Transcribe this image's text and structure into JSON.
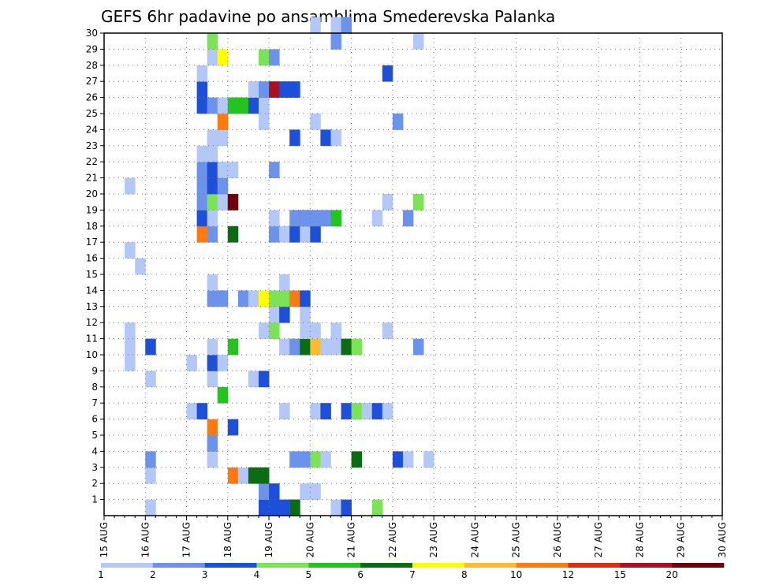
{
  "chart_data": {
    "type": "heatmap",
    "title": "GEFS 6hr padavine po ansamblima Smederevska Palanka",
    "xlabel": "",
    "ylabel": "",
    "x_ticks": [
      "15 AUG",
      "16 AUG",
      "17 AUG",
      "18 AUG",
      "19 AUG",
      "20 AUG",
      "21 AUG",
      "22 AUG",
      "23 AUG",
      "24 AUG",
      "25 AUG",
      "26 AUG",
      "27 AUG",
      "28 AUG",
      "29 AUG",
      "30 AUG"
    ],
    "y_ticks": [
      "1",
      "2",
      "3",
      "4",
      "5",
      "6",
      "7",
      "8",
      "9",
      "10",
      "11",
      "12",
      "13",
      "14",
      "15",
      "16",
      "17",
      "18",
      "19",
      "20",
      "21",
      "22",
      "23",
      "24",
      "25",
      "26",
      "27",
      "28",
      "29",
      "30"
    ],
    "xlim": [
      0,
      60
    ],
    "ylim": [
      0,
      30
    ],
    "grid": true,
    "legend": "colorbar-bottom",
    "levels": [
      "1",
      "2",
      "3",
      "4",
      "5",
      "6",
      "7",
      "8",
      "10",
      "12",
      "15",
      "20"
    ],
    "colors": [
      "#b3c8f7",
      "#6b93ec",
      "#1d4fd8",
      "#7de356",
      "#23c41e",
      "#0a6d11",
      "#ffff00",
      "#ffbb2e",
      "#ff7a0e",
      "#e02b15",
      "#ad0f1c",
      "#6e0009"
    ],
    "cell_units": "x = 6-hour step index from 15 AUG 00z (4 per day); y = ensemble member; c = colour class index (0-11)",
    "cells": [
      {
        "x": 4,
        "y": 0,
        "c": 0
      },
      {
        "x": 15,
        "y": 0,
        "c": 2
      },
      {
        "x": 16,
        "y": 0,
        "c": 2
      },
      {
        "x": 17,
        "y": 0,
        "c": 2
      },
      {
        "x": 18,
        "y": 0,
        "c": 0
      },
      {
        "x": 18,
        "y": 0,
        "c": 5
      },
      {
        "x": 22,
        "y": 0,
        "c": 0
      },
      {
        "x": 23,
        "y": 0,
        "c": 2
      },
      {
        "x": 26,
        "y": 0,
        "c": 3
      },
      {
        "x": 15,
        "y": 1,
        "c": 1
      },
      {
        "x": 16,
        "y": 1,
        "c": 2
      },
      {
        "x": 19,
        "y": 1,
        "c": 0
      },
      {
        "x": 20,
        "y": 1,
        "c": 0
      },
      {
        "x": 4,
        "y": 2,
        "c": 0
      },
      {
        "x": 12,
        "y": 2,
        "c": 8
      },
      {
        "x": 13,
        "y": 2,
        "c": 0
      },
      {
        "x": 14,
        "y": 2,
        "c": 0
      },
      {
        "x": 14,
        "y": 2,
        "c": 5
      },
      {
        "x": 15,
        "y": 2,
        "c": 5
      },
      {
        "x": 4,
        "y": 3,
        "c": 1
      },
      {
        "x": 10,
        "y": 3,
        "c": 0
      },
      {
        "x": 18,
        "y": 3,
        "c": 1
      },
      {
        "x": 19,
        "y": 3,
        "c": 1
      },
      {
        "x": 20,
        "y": 3,
        "c": 3
      },
      {
        "x": 21,
        "y": 3,
        "c": 0
      },
      {
        "x": 24,
        "y": 3,
        "c": 5
      },
      {
        "x": 28,
        "y": 3,
        "c": 2
      },
      {
        "x": 29,
        "y": 3,
        "c": 0
      },
      {
        "x": 31,
        "y": 3,
        "c": 0
      },
      {
        "x": 10,
        "y": 4,
        "c": 1
      },
      {
        "x": 10,
        "y": 5,
        "c": 8
      },
      {
        "x": 12,
        "y": 5,
        "c": 2
      },
      {
        "x": 8,
        "y": 6,
        "c": 0
      },
      {
        "x": 9,
        "y": 6,
        "c": 2
      },
      {
        "x": 17,
        "y": 6,
        "c": 0
      },
      {
        "x": 20,
        "y": 6,
        "c": 0
      },
      {
        "x": 21,
        "y": 6,
        "c": 2
      },
      {
        "x": 23,
        "y": 6,
        "c": 2
      },
      {
        "x": 24,
        "y": 6,
        "c": 3
      },
      {
        "x": 25,
        "y": 6,
        "c": 0
      },
      {
        "x": 26,
        "y": 6,
        "c": 2
      },
      {
        "x": 27,
        "y": 6,
        "c": 0
      },
      {
        "x": 11,
        "y": 7,
        "c": 4
      },
      {
        "x": 4,
        "y": 8,
        "c": 0
      },
      {
        "x": 10,
        "y": 8,
        "c": 0
      },
      {
        "x": 14,
        "y": 8,
        "c": 0
      },
      {
        "x": 15,
        "y": 8,
        "c": 2
      },
      {
        "x": 2,
        "y": 9,
        "c": 0
      },
      {
        "x": 8,
        "y": 9,
        "c": 0
      },
      {
        "x": 10,
        "y": 9,
        "c": 2
      },
      {
        "x": 11,
        "y": 9,
        "c": 0
      },
      {
        "x": 2,
        "y": 10,
        "c": 0
      },
      {
        "x": 4,
        "y": 10,
        "c": 2
      },
      {
        "x": 10,
        "y": 10,
        "c": 0
      },
      {
        "x": 12,
        "y": 10,
        "c": 4
      },
      {
        "x": 17,
        "y": 10,
        "c": 0
      },
      {
        "x": 18,
        "y": 10,
        "c": 0
      },
      {
        "x": 18,
        "y": 10,
        "c": 1
      },
      {
        "x": 19,
        "y": 10,
        "c": 5
      },
      {
        "x": 20,
        "y": 10,
        "c": 7
      },
      {
        "x": 21,
        "y": 10,
        "c": 0
      },
      {
        "x": 22,
        "y": 10,
        "c": 0
      },
      {
        "x": 23,
        "y": 10,
        "c": 5
      },
      {
        "x": 24,
        "y": 10,
        "c": 3
      },
      {
        "x": 30,
        "y": 10,
        "c": 1
      },
      {
        "x": 2,
        "y": 11,
        "c": 0
      },
      {
        "x": 15,
        "y": 11,
        "c": 0
      },
      {
        "x": 16,
        "y": 11,
        "c": 3
      },
      {
        "x": 19,
        "y": 11,
        "c": 0
      },
      {
        "x": 20,
        "y": 11,
        "c": 0
      },
      {
        "x": 22,
        "y": 11,
        "c": 0
      },
      {
        "x": 27,
        "y": 11,
        "c": 0
      },
      {
        "x": 16,
        "y": 12,
        "c": 0
      },
      {
        "x": 17,
        "y": 12,
        "c": 2
      },
      {
        "x": 19,
        "y": 12,
        "c": 0
      },
      {
        "x": 10,
        "y": 13,
        "c": 1
      },
      {
        "x": 11,
        "y": 13,
        "c": 1
      },
      {
        "x": 13,
        "y": 13,
        "c": 1
      },
      {
        "x": 14,
        "y": 13,
        "c": 0
      },
      {
        "x": 15,
        "y": 13,
        "c": 3
      },
      {
        "x": 15,
        "y": 13,
        "c": 6
      },
      {
        "x": 16,
        "y": 13,
        "c": 3
      },
      {
        "x": 17,
        "y": 13,
        "c": 3
      },
      {
        "x": 18,
        "y": 13,
        "c": 8
      },
      {
        "x": 19,
        "y": 13,
        "c": 2
      },
      {
        "x": 10,
        "y": 14,
        "c": 0
      },
      {
        "x": 17,
        "y": 14,
        "c": 0
      },
      {
        "x": 3,
        "y": 15,
        "c": 0
      },
      {
        "x": 2,
        "y": 16,
        "c": 0
      },
      {
        "x": 9,
        "y": 17,
        "c": 8
      },
      {
        "x": 10,
        "y": 17,
        "c": 1
      },
      {
        "x": 12,
        "y": 17,
        "c": 5
      },
      {
        "x": 16,
        "y": 17,
        "c": 1
      },
      {
        "x": 17,
        "y": 17,
        "c": 0
      },
      {
        "x": 18,
        "y": 17,
        "c": 0
      },
      {
        "x": 18,
        "y": 17,
        "c": 2
      },
      {
        "x": 19,
        "y": 17,
        "c": 0
      },
      {
        "x": 20,
        "y": 17,
        "c": 2
      },
      {
        "x": 9,
        "y": 18,
        "c": 2
      },
      {
        "x": 10,
        "y": 18,
        "c": 0
      },
      {
        "x": 16,
        "y": 18,
        "c": 0
      },
      {
        "x": 18,
        "y": 18,
        "c": 1
      },
      {
        "x": 19,
        "y": 18,
        "c": 9
      },
      {
        "x": 19,
        "y": 18,
        "c": 1
      },
      {
        "x": 20,
        "y": 18,
        "c": 1
      },
      {
        "x": 21,
        "y": 18,
        "c": 1
      },
      {
        "x": 22,
        "y": 18,
        "c": 4
      },
      {
        "x": 26,
        "y": 18,
        "c": 0
      },
      {
        "x": 29,
        "y": 18,
        "c": 1
      },
      {
        "x": 9,
        "y": 19,
        "c": 1
      },
      {
        "x": 10,
        "y": 19,
        "c": 3
      },
      {
        "x": 11,
        "y": 19,
        "c": 0
      },
      {
        "x": 12,
        "y": 19,
        "c": 0
      },
      {
        "x": 12,
        "y": 19,
        "c": 11
      },
      {
        "x": 27,
        "y": 19,
        "c": 0
      },
      {
        "x": 30,
        "y": 19,
        "c": 0
      },
      {
        "x": 30,
        "y": 19,
        "c": 3
      },
      {
        "x": 2,
        "y": 20,
        "c": 0
      },
      {
        "x": 9,
        "y": 20,
        "c": 1
      },
      {
        "x": 10,
        "y": 20,
        "c": 2
      },
      {
        "x": 11,
        "y": 20,
        "c": 1
      },
      {
        "x": 9,
        "y": 21,
        "c": 1
      },
      {
        "x": 10,
        "y": 21,
        "c": 2
      },
      {
        "x": 11,
        "y": 21,
        "c": 0
      },
      {
        "x": 12,
        "y": 21,
        "c": 0
      },
      {
        "x": 16,
        "y": 21,
        "c": 1
      },
      {
        "x": 9,
        "y": 22,
        "c": 0
      },
      {
        "x": 10,
        "y": 22,
        "c": 0
      },
      {
        "x": 10,
        "y": 23,
        "c": 0
      },
      {
        "x": 11,
        "y": 23,
        "c": 0
      },
      {
        "x": 18,
        "y": 23,
        "c": 2
      },
      {
        "x": 21,
        "y": 23,
        "c": 2
      },
      {
        "x": 22,
        "y": 23,
        "c": 0
      },
      {
        "x": 11,
        "y": 24,
        "c": 8
      },
      {
        "x": 15,
        "y": 24,
        "c": 0
      },
      {
        "x": 20,
        "y": 24,
        "c": 0
      },
      {
        "x": 28,
        "y": 24,
        "c": 1
      },
      {
        "x": 9,
        "y": 25,
        "c": 2
      },
      {
        "x": 10,
        "y": 25,
        "c": 1
      },
      {
        "x": 11,
        "y": 25,
        "c": 0
      },
      {
        "x": 12,
        "y": 25,
        "c": 3
      },
      {
        "x": 12,
        "y": 25,
        "c": 4
      },
      {
        "x": 13,
        "y": 25,
        "c": 4
      },
      {
        "x": 14,
        "y": 25,
        "c": 2
      },
      {
        "x": 15,
        "y": 25,
        "c": 0
      },
      {
        "x": 15,
        "y": 25,
        "c": 0
      },
      {
        "x": 9,
        "y": 26,
        "c": 2
      },
      {
        "x": 14,
        "y": 26,
        "c": 0
      },
      {
        "x": 15,
        "y": 26,
        "c": 1
      },
      {
        "x": 16,
        "y": 26,
        "c": 10
      },
      {
        "x": 17,
        "y": 26,
        "c": 2
      },
      {
        "x": 18,
        "y": 26,
        "c": 2
      },
      {
        "x": 9,
        "y": 27,
        "c": 0
      },
      {
        "x": 27,
        "y": 27,
        "c": 2
      },
      {
        "x": 10,
        "y": 28,
        "c": 0
      },
      {
        "x": 11,
        "y": 28,
        "c": 6
      },
      {
        "x": 15,
        "y": 28,
        "c": 3
      },
      {
        "x": 16,
        "y": 28,
        "c": 1
      },
      {
        "x": 10,
        "y": 29,
        "c": 3
      },
      {
        "x": 22,
        "y": 29,
        "c": 1
      },
      {
        "x": 30,
        "y": 29,
        "c": 0
      },
      {
        "x": 20,
        "y": 30,
        "c": 0
      },
      {
        "x": 22,
        "y": 30,
        "c": 0
      },
      {
        "x": 23,
        "y": 30,
        "c": 1
      }
    ]
  }
}
